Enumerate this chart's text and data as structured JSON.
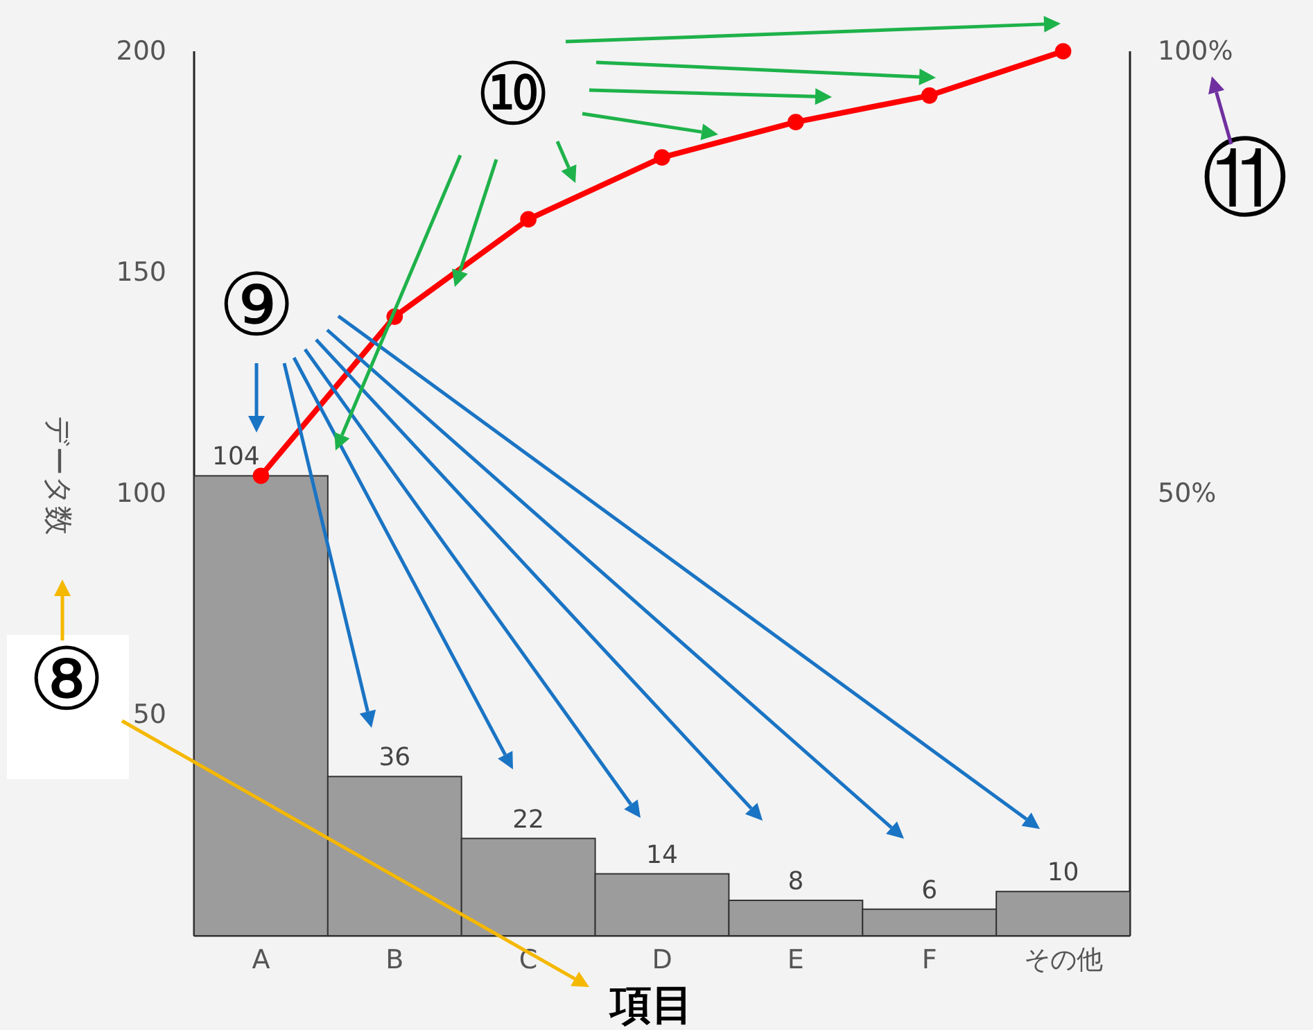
{
  "chart_data": {
    "type": "bar",
    "xlabel": "項目",
    "ylabel": "データ数",
    "categories": [
      "A",
      "B",
      "C",
      "D",
      "E",
      "F",
      "その他"
    ],
    "series": [
      {
        "color": "#9c9c9c",
        "values": [
          104,
          36,
          22,
          14,
          8,
          6,
          10
        ],
        "value_labels": [
          "104",
          "36",
          "22",
          "14",
          "8",
          "6",
          "10"
        ]
      },
      {
        "type": "line",
        "color": "#ff0000",
        "values": [
          104,
          140,
          162,
          176,
          184,
          190,
          200
        ]
      }
    ],
    "marker": "circle",
    "ylim": [
      0,
      200
    ],
    "yticks": [
      50,
      100,
      150,
      200
    ],
    "y2lim": [
      0,
      100
    ],
    "y2ticks": [
      {
        "value": 50,
        "label": "50%"
      },
      {
        "value": 100,
        "label": "100%"
      }
    ],
    "grid": false,
    "annotations": [
      "⑧",
      "⑨",
      "⑩",
      "⑪"
    ]
  }
}
